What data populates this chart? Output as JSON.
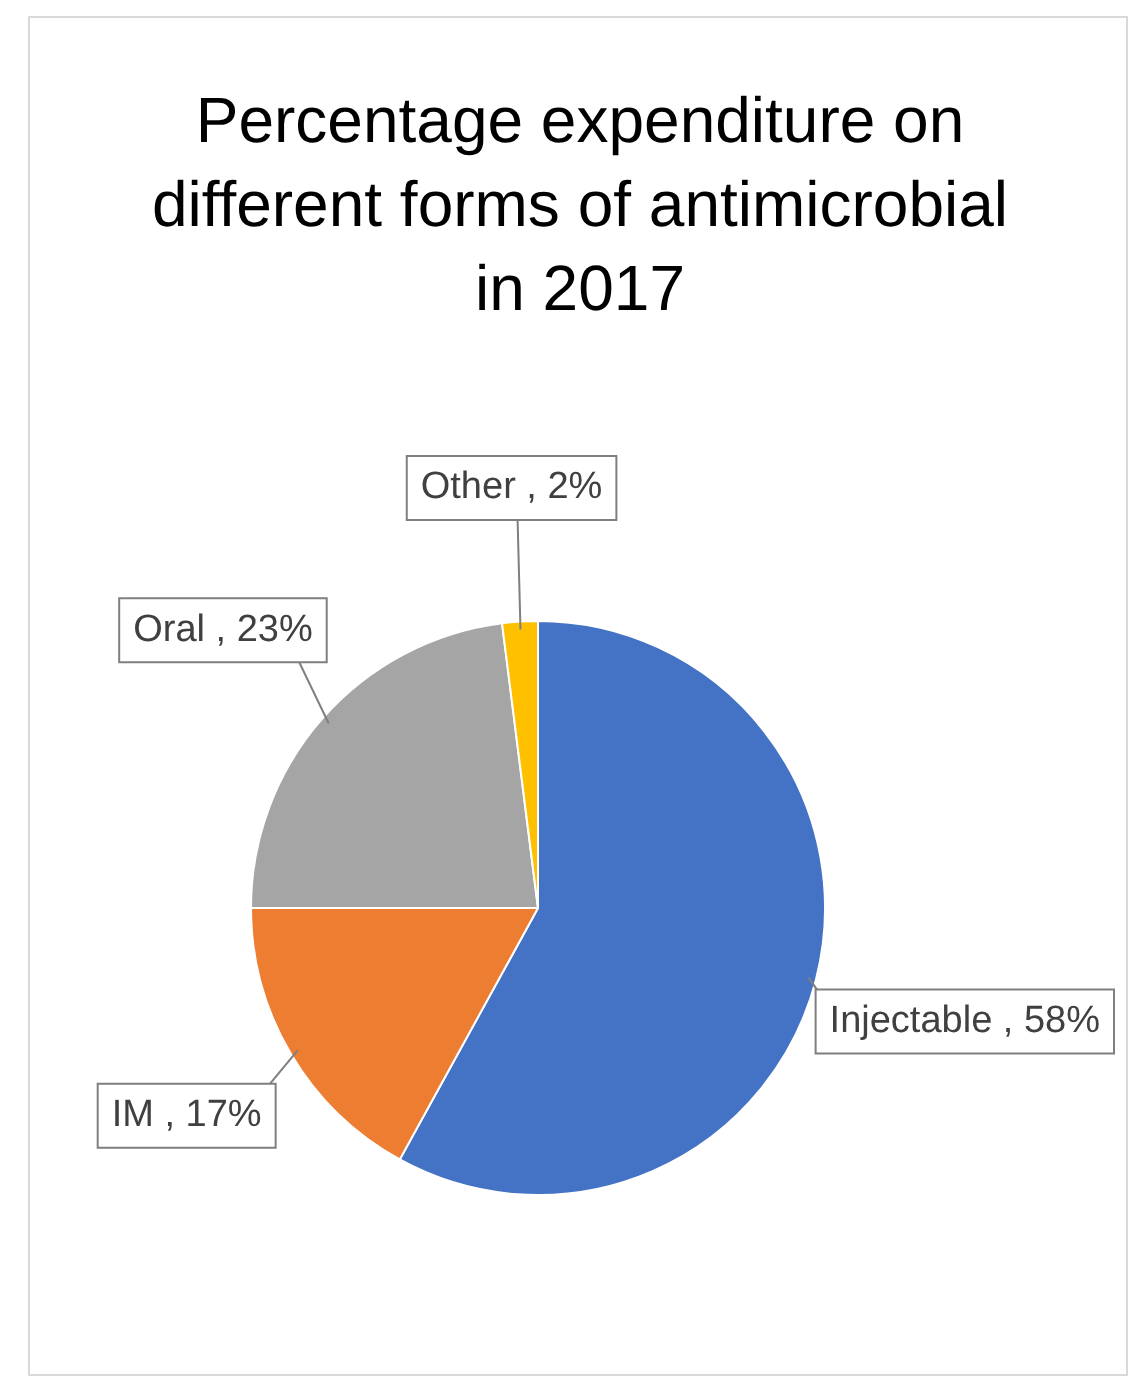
{
  "chart_data": {
    "type": "pie",
    "title": "Percentage expenditure on different forms of antimicrobial in 2017",
    "categories": [
      "Injectable",
      "IM",
      "Oral",
      "Other"
    ],
    "values": [
      58,
      17,
      23,
      2
    ],
    "colors": [
      "#4472c4",
      "#ed7d31",
      "#a5a5a5",
      "#ffc000"
    ],
    "value_labels": [
      "58%",
      "17%",
      "23%",
      "2%"
    ],
    "legend": false
  }
}
